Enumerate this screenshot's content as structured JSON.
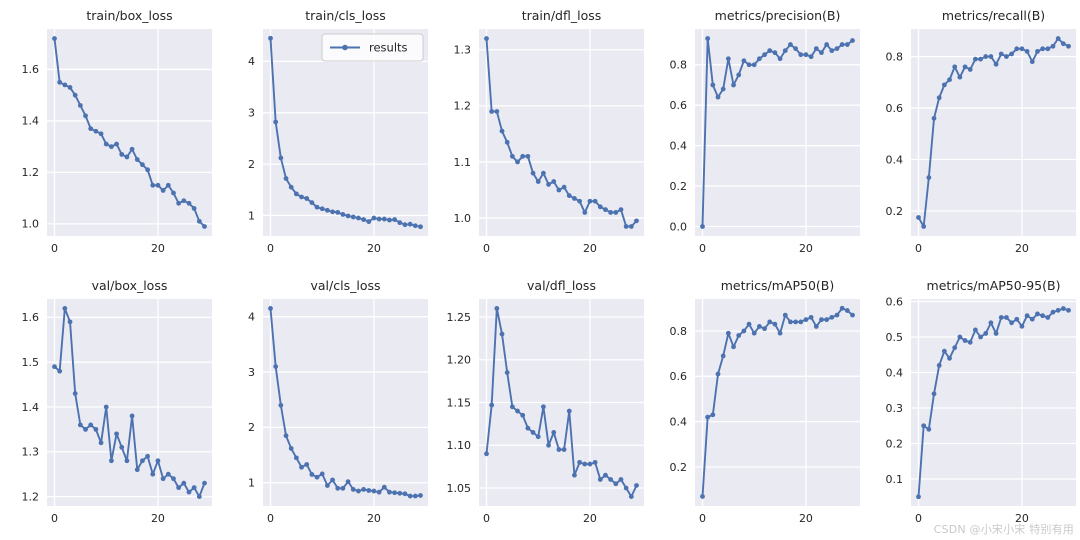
{
  "figure": {
    "background": "#ffffff",
    "axes_background": "#eaeaf2",
    "grid_color": "#ffffff",
    "text_color": "#262626",
    "line_color": "#4c72b0",
    "marker": "circle"
  },
  "legend": {
    "label": "results",
    "attached_to": "train/cls_loss",
    "position": "upper right"
  },
  "watermark": {
    "text": "CSDN @小宋小宋 特别有用"
  },
  "chart_data": [
    {
      "type": "line",
      "title": "train/box_loss",
      "series_name": "results",
      "xticks": [
        "0",
        "20"
      ],
      "yticks": [
        "1.0",
        "1.2",
        "1.4",
        "1.6"
      ],
      "xlim": [
        -1.45,
        30.45
      ],
      "ylim": [
        0.953,
        1.757
      ],
      "show_legend": false,
      "values": [
        1.72,
        1.55,
        1.54,
        1.53,
        1.5,
        1.46,
        1.42,
        1.37,
        1.36,
        1.35,
        1.31,
        1.3,
        1.31,
        1.27,
        1.26,
        1.29,
        1.25,
        1.23,
        1.21,
        1.15,
        1.15,
        1.13,
        1.15,
        1.12,
        1.08,
        1.09,
        1.08,
        1.06,
        1.01,
        0.99
      ]
    },
    {
      "type": "line",
      "title": "train/cls_loss",
      "series_name": "results",
      "xticks": [
        "0",
        "20"
      ],
      "yticks": [
        "1",
        "2",
        "3",
        "4"
      ],
      "xlim": [
        -1.45,
        30.45
      ],
      "ylim": [
        0.6,
        4.63
      ],
      "show_legend": true,
      "values": [
        4.45,
        2.82,
        2.12,
        1.72,
        1.55,
        1.42,
        1.36,
        1.33,
        1.25,
        1.16,
        1.13,
        1.1,
        1.07,
        1.06,
        1.02,
        0.99,
        0.97,
        0.95,
        0.92,
        0.88,
        0.95,
        0.93,
        0.93,
        0.91,
        0.92,
        0.86,
        0.82,
        0.83,
        0.8,
        0.78
      ]
    },
    {
      "type": "line",
      "title": "train/dfl_loss",
      "series_name": "results",
      "xticks": [
        "0",
        "20"
      ],
      "yticks": [
        "1.0",
        "1.1",
        "1.2",
        "1.3"
      ],
      "xlim": [
        -1.45,
        30.45
      ],
      "ylim": [
        0.968,
        1.337
      ],
      "show_legend": false,
      "values": [
        1.32,
        1.19,
        1.19,
        1.155,
        1.135,
        1.11,
        1.1,
        1.11,
        1.11,
        1.08,
        1.065,
        1.08,
        1.06,
        1.065,
        1.05,
        1.055,
        1.04,
        1.035,
        1.03,
        1.01,
        1.03,
        1.03,
        1.02,
        1.015,
        1.01,
        1.01,
        1.015,
        0.985,
        0.985,
        0.995
      ]
    },
    {
      "type": "line",
      "title": "metrics/precision(B)",
      "series_name": "results",
      "xticks": [
        "0",
        "20"
      ],
      "yticks": [
        "0.0",
        "0.2",
        "0.4",
        "0.6",
        "0.8"
      ],
      "xlim": [
        -1.45,
        30.45
      ],
      "ylim": [
        -0.047,
        0.977
      ],
      "show_legend": false,
      "values": [
        0.0,
        0.93,
        0.7,
        0.64,
        0.68,
        0.83,
        0.7,
        0.75,
        0.82,
        0.8,
        0.8,
        0.83,
        0.85,
        0.87,
        0.86,
        0.83,
        0.87,
        0.9,
        0.88,
        0.85,
        0.85,
        0.84,
        0.88,
        0.86,
        0.9,
        0.87,
        0.88,
        0.9,
        0.9,
        0.92
      ]
    },
    {
      "type": "line",
      "title": "metrics/recall(B)",
      "series_name": "results",
      "xticks": [
        "0",
        "20"
      ],
      "yticks": [
        "0.2",
        "0.4",
        "0.6",
        "0.8"
      ],
      "xlim": [
        -1.45,
        30.45
      ],
      "ylim": [
        0.103,
        0.907
      ],
      "show_legend": false,
      "values": [
        0.175,
        0.14,
        0.33,
        0.56,
        0.64,
        0.69,
        0.71,
        0.76,
        0.72,
        0.76,
        0.75,
        0.79,
        0.79,
        0.8,
        0.8,
        0.77,
        0.81,
        0.8,
        0.81,
        0.83,
        0.83,
        0.82,
        0.78,
        0.82,
        0.83,
        0.83,
        0.84,
        0.87,
        0.85,
        0.84
      ]
    },
    {
      "type": "line",
      "title": "val/box_loss",
      "series_name": "results",
      "xticks": [
        "0",
        "20"
      ],
      "yticks": [
        "1.2",
        "1.3",
        "1.4",
        "1.5",
        "1.6"
      ],
      "xlim": [
        -1.45,
        30.45
      ],
      "ylim": [
        1.179,
        1.641
      ],
      "show_legend": false,
      "values": [
        1.49,
        1.48,
        1.62,
        1.59,
        1.43,
        1.36,
        1.35,
        1.36,
        1.35,
        1.32,
        1.4,
        1.28,
        1.34,
        1.31,
        1.28,
        1.38,
        1.26,
        1.28,
        1.29,
        1.25,
        1.28,
        1.24,
        1.25,
        1.24,
        1.22,
        1.23,
        1.21,
        1.22,
        1.2,
        1.23
      ]
    },
    {
      "type": "line",
      "title": "val/cls_loss",
      "series_name": "results",
      "xticks": [
        "0",
        "20"
      ],
      "yticks": [
        "1",
        "2",
        "3",
        "4"
      ],
      "xlim": [
        -1.45,
        30.45
      ],
      "ylim": [
        0.58,
        4.32
      ],
      "show_legend": false,
      "values": [
        4.15,
        3.1,
        2.4,
        1.85,
        1.62,
        1.45,
        1.28,
        1.33,
        1.15,
        1.1,
        1.16,
        0.95,
        1.05,
        0.9,
        0.9,
        1.02,
        0.88,
        0.85,
        0.88,
        0.86,
        0.85,
        0.83,
        0.92,
        0.83,
        0.82,
        0.81,
        0.8,
        0.76,
        0.76,
        0.77
      ]
    },
    {
      "type": "line",
      "title": "val/dfl_loss",
      "series_name": "results",
      "xticks": [
        "0",
        "20"
      ],
      "yticks": [
        "1.05",
        "1.10",
        "1.15",
        "1.20",
        "1.25"
      ],
      "xlim": [
        -1.45,
        30.45
      ],
      "ylim": [
        1.029,
        1.271
      ],
      "show_legend": false,
      "values": [
        1.09,
        1.147,
        1.26,
        1.23,
        1.185,
        1.145,
        1.14,
        1.135,
        1.12,
        1.115,
        1.11,
        1.145,
        1.1,
        1.115,
        1.095,
        1.095,
        1.14,
        1.065,
        1.08,
        1.078,
        1.078,
        1.08,
        1.06,
        1.065,
        1.06,
        1.055,
        1.06,
        1.05,
        1.04,
        1.053
      ]
    },
    {
      "type": "line",
      "title": "metrics/mAP50(B)",
      "series_name": "results",
      "xticks": [
        "0",
        "20"
      ],
      "yticks": [
        "0.2",
        "0.4",
        "0.6",
        "0.8"
      ],
      "xlim": [
        -1.45,
        30.45
      ],
      "ylim": [
        0.028,
        0.941
      ],
      "show_legend": false,
      "values": [
        0.07,
        0.42,
        0.43,
        0.61,
        0.69,
        0.79,
        0.73,
        0.78,
        0.8,
        0.83,
        0.79,
        0.82,
        0.81,
        0.84,
        0.83,
        0.79,
        0.87,
        0.84,
        0.84,
        0.84,
        0.85,
        0.86,
        0.82,
        0.85,
        0.85,
        0.86,
        0.87,
        0.9,
        0.89,
        0.87
      ]
    },
    {
      "type": "line",
      "title": "metrics/mAP50-95(B)",
      "series_name": "results",
      "xticks": [
        "0",
        "20"
      ],
      "yticks": [
        "0.1",
        "0.2",
        "0.3",
        "0.4",
        "0.5",
        "0.6"
      ],
      "xlim": [
        -1.45,
        30.45
      ],
      "ylim": [
        0.024,
        0.607
      ],
      "show_legend": false,
      "values": [
        0.05,
        0.25,
        0.24,
        0.34,
        0.42,
        0.46,
        0.44,
        0.47,
        0.5,
        0.49,
        0.485,
        0.52,
        0.5,
        0.51,
        0.54,
        0.51,
        0.555,
        0.555,
        0.54,
        0.55,
        0.53,
        0.56,
        0.55,
        0.565,
        0.56,
        0.555,
        0.57,
        0.575,
        0.58,
        0.575
      ]
    }
  ]
}
